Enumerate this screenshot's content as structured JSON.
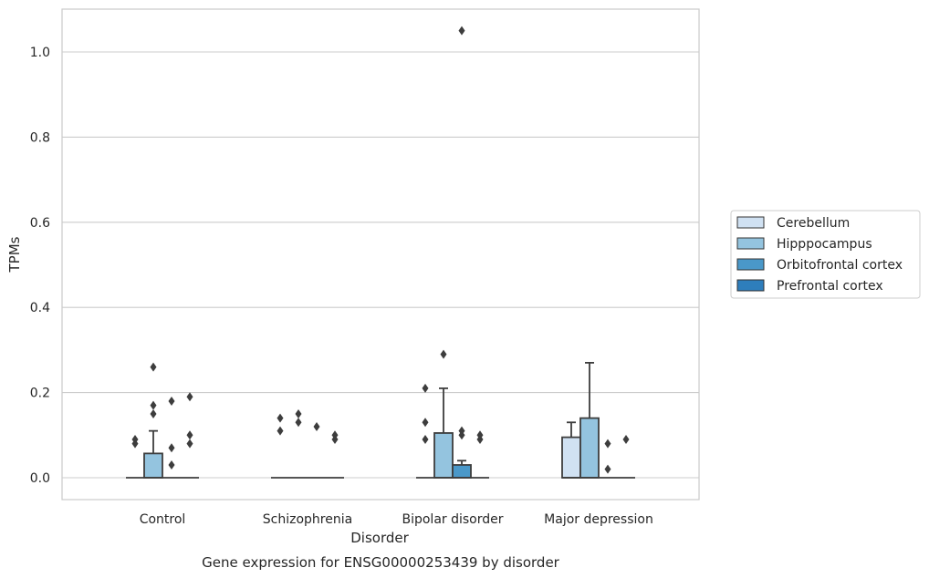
{
  "chart_data": {
    "type": "box",
    "title": "Gene expression for ENSG00000253439 by disorder",
    "xlabel": "Disorder",
    "ylabel": "TPMs",
    "ylim": [
      -0.05,
      1.1
    ],
    "yticks": [
      0.0,
      0.2,
      0.4,
      0.6,
      0.8,
      1.0
    ],
    "ytick_labels": [
      "0.0",
      "0.2",
      "0.4",
      "0.6",
      "0.8",
      "1.0"
    ],
    "grid": "horizontal",
    "legend_position": "right",
    "categories": [
      "Control",
      "Schizophrenia",
      "Bipolar disorder",
      "Major depression"
    ],
    "series": [
      {
        "name": "Cerebellum",
        "color": "#d0e1f2",
        "boxes": [
          {
            "q1": 0,
            "median": 0,
            "q3": 0,
            "whislo": 0,
            "whishi": 0,
            "fliers": [
              0.08,
              0.09
            ]
          },
          {
            "q1": 0,
            "median": 0,
            "q3": 0,
            "whislo": 0,
            "whishi": 0,
            "fliers": [
              0.11,
              0.14
            ]
          },
          {
            "q1": 0,
            "median": 0,
            "q3": 0,
            "whislo": 0,
            "whishi": 0,
            "fliers": [
              0.09,
              0.13,
              0.21
            ]
          },
          {
            "q1": 0,
            "median": 0,
            "q3": 0.095,
            "whislo": 0,
            "whishi": 0.13,
            "fliers": []
          }
        ]
      },
      {
        "name": "Hipppocampus",
        "color": "#94c4df",
        "boxes": [
          {
            "q1": 0,
            "median": 0,
            "q3": 0.057,
            "whislo": 0,
            "whishi": 0.11,
            "fliers": [
              0.15,
              0.17,
              0.26
            ]
          },
          {
            "q1": 0,
            "median": 0,
            "q3": 0,
            "whislo": 0,
            "whishi": 0,
            "fliers": [
              0.13,
              0.15
            ]
          },
          {
            "q1": 0,
            "median": 0,
            "q3": 0.105,
            "whislo": 0,
            "whishi": 0.21,
            "fliers": [
              0.29
            ]
          },
          {
            "q1": 0,
            "median": 0,
            "q3": 0.14,
            "whislo": 0,
            "whishi": 0.27,
            "fliers": []
          }
        ]
      },
      {
        "name": "Orbitofrontal cortex",
        "color": "#4a98c9",
        "boxes": [
          {
            "q1": 0,
            "median": 0,
            "q3": 0,
            "whislo": 0,
            "whishi": 0,
            "fliers": [
              0.03,
              0.07,
              0.18
            ]
          },
          {
            "q1": 0,
            "median": 0,
            "q3": 0,
            "whislo": 0,
            "whishi": 0,
            "fliers": [
              0.12
            ]
          },
          {
            "q1": 0,
            "median": 0,
            "q3": 0.03,
            "whislo": 0,
            "whishi": 0.04,
            "fliers": [
              0.1,
              0.11,
              1.05
            ]
          },
          {
            "q1": 0,
            "median": 0,
            "q3": 0,
            "whislo": 0,
            "whishi": 0,
            "fliers": [
              0.02,
              0.08
            ]
          }
        ]
      },
      {
        "name": "Prefrontal cortex",
        "color": "#2e7ebc",
        "boxes": [
          {
            "q1": 0,
            "median": 0,
            "q3": 0,
            "whislo": 0,
            "whishi": 0,
            "fliers": [
              0.08,
              0.1,
              0.19
            ]
          },
          {
            "q1": 0,
            "median": 0,
            "q3": 0,
            "whislo": 0,
            "whishi": 0,
            "fliers": [
              0.09,
              0.1
            ]
          },
          {
            "q1": 0,
            "median": 0,
            "q3": 0,
            "whislo": 0,
            "whishi": 0,
            "fliers": [
              0.09,
              0.1
            ]
          },
          {
            "q1": 0,
            "median": 0,
            "q3": 0,
            "whislo": 0,
            "whishi": 0,
            "fliers": [
              0.09
            ]
          }
        ]
      }
    ]
  }
}
